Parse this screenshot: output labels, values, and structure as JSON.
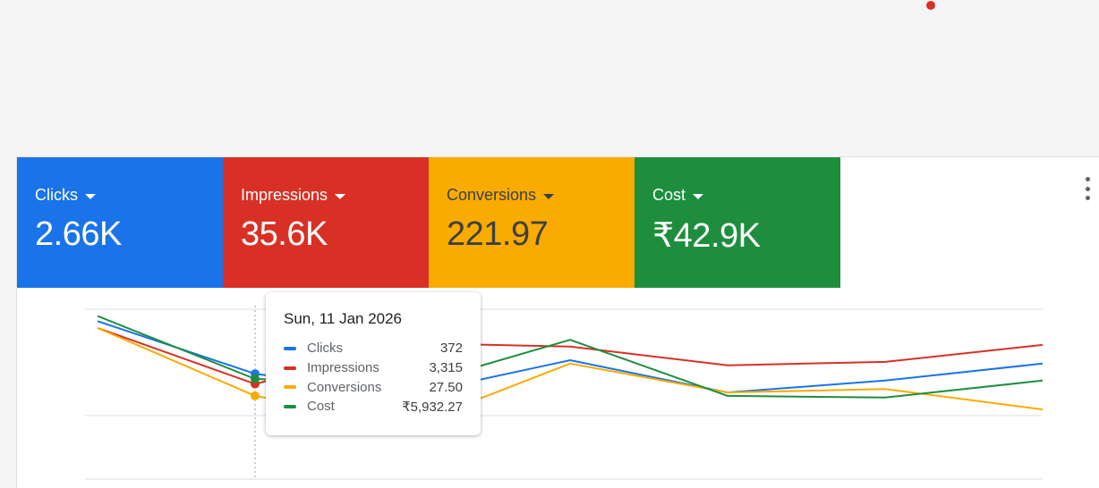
{
  "metrics": [
    {
      "label": "Clicks",
      "value": "2.66K",
      "color": "#1a73e8"
    },
    {
      "label": "Impressions",
      "value": "35.6K",
      "color": "#d93025"
    },
    {
      "label": "Conversions",
      "value": "221.97",
      "color": "#f9ab00"
    },
    {
      "label": "Cost",
      "value": "₹42.9K",
      "color": "#1e8e3e"
    }
  ],
  "icons": {
    "more": "more-vert-icon",
    "dropdown": "caret-down-icon",
    "notification": "notification-dot-icon"
  },
  "tooltip": {
    "date": "Sun, 11 Jan 2026",
    "rows": [
      {
        "name": "Clicks",
        "value": "372",
        "color": "#1a73e8"
      },
      {
        "name": "Impressions",
        "value": "3,315",
        "color": "#d93025"
      },
      {
        "name": "Conversions",
        "value": "27.50",
        "color": "#f9ab00"
      },
      {
        "name": "Cost",
        "value": "₹5,932.27",
        "color": "#1e8e3e"
      }
    ]
  },
  "chart_data": {
    "type": "line",
    "highlighted_point": 1,
    "series": [
      {
        "name": "Clicks",
        "color": "#1a73e8",
        "values": [
          0.93,
          0.62,
          0.5,
          0.7,
          0.51,
          0.58,
          0.68
        ]
      },
      {
        "name": "Impressions",
        "color": "#d93025",
        "values": [
          0.89,
          0.56,
          0.8,
          0.78,
          0.67,
          0.69,
          0.79
        ]
      },
      {
        "name": "Conversions",
        "color": "#f9ab00",
        "values": [
          0.89,
          0.49,
          0.32,
          0.68,
          0.51,
          0.53,
          0.41
        ]
      },
      {
        "name": "Cost",
        "color": "#1e8e3e",
        "values": [
          0.96,
          0.59,
          0.55,
          0.82,
          0.49,
          0.48,
          0.58
        ]
      }
    ]
  }
}
